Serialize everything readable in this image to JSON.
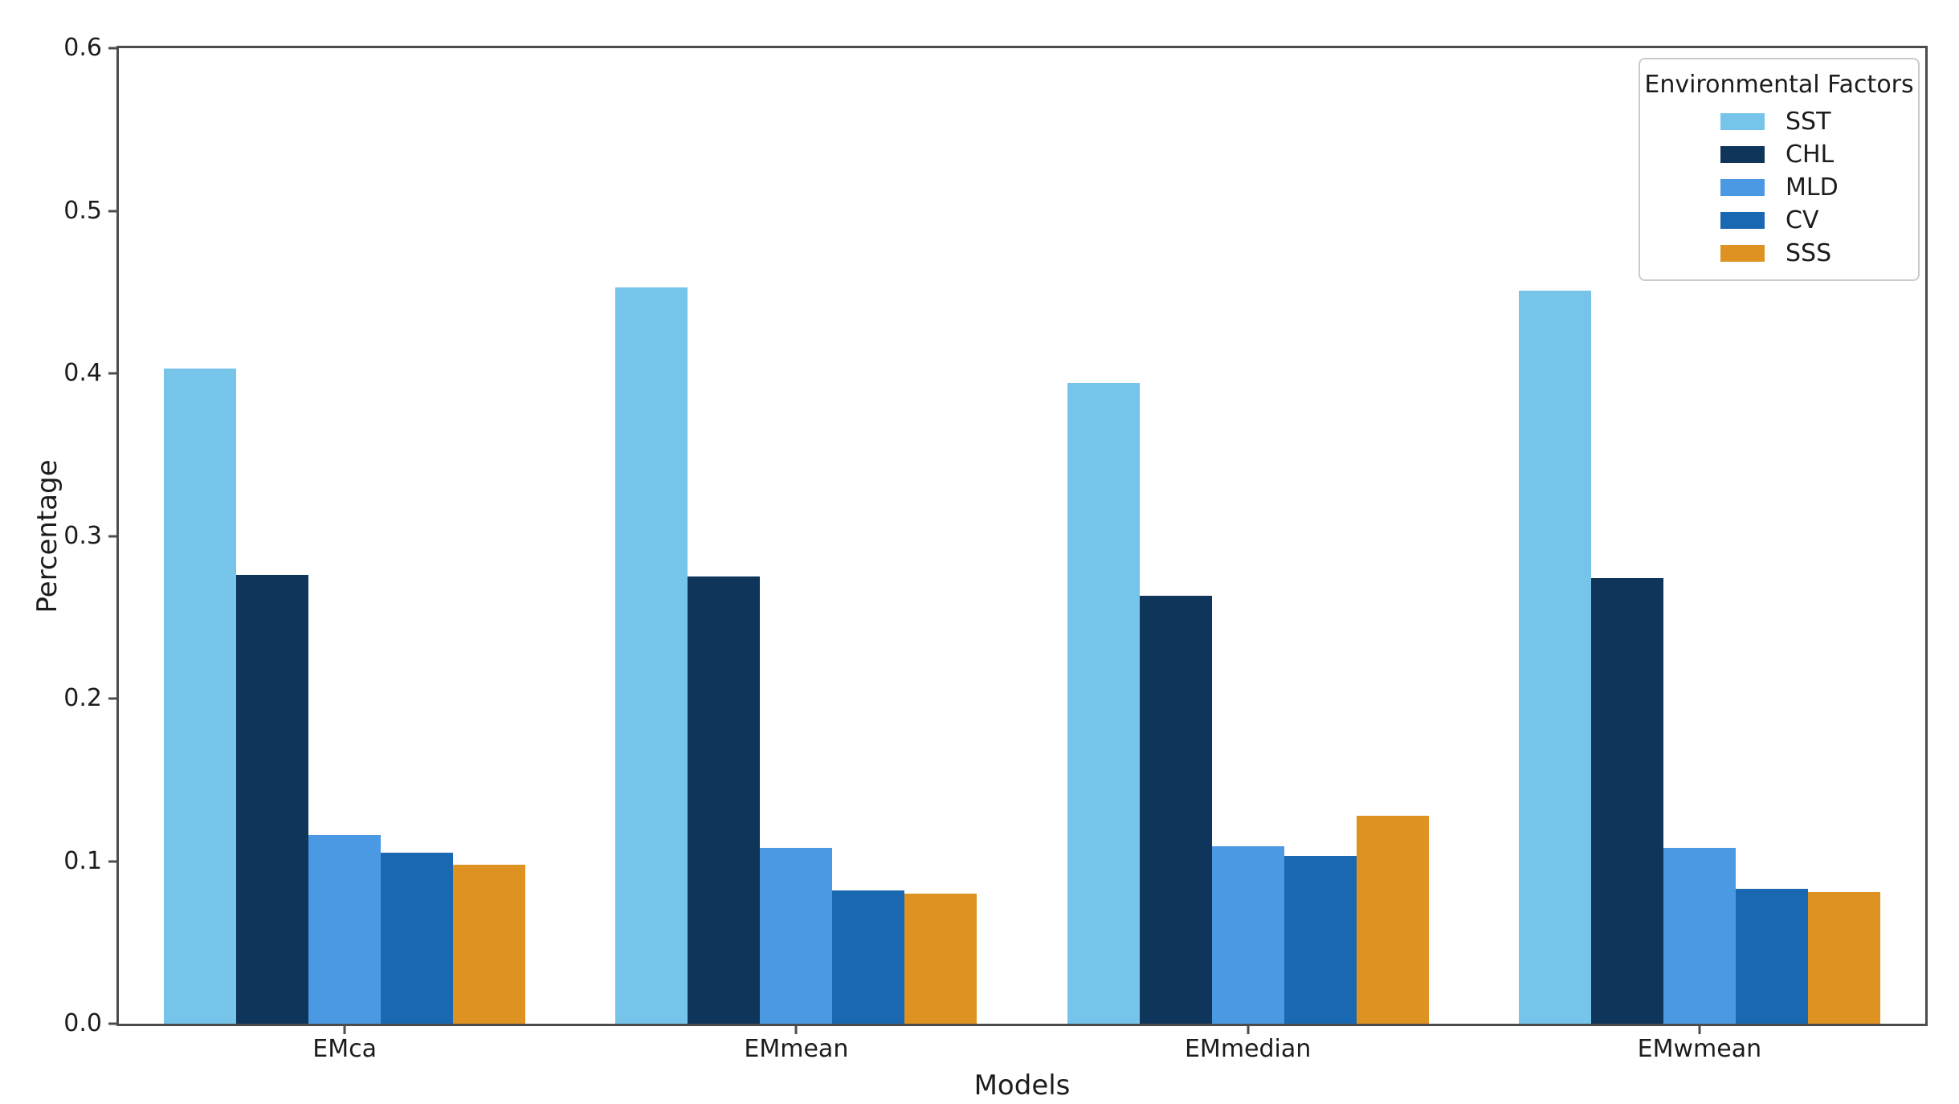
{
  "chart_data": {
    "type": "bar",
    "title": "",
    "xlabel": "Models",
    "ylabel": "Percentage",
    "categories": [
      "EMca",
      "EMmean",
      "EMmedian",
      "EMwmean"
    ],
    "series": [
      {
        "name": "SST",
        "color": "#77C4EB",
        "values": [
          0.403,
          0.453,
          0.394,
          0.451
        ]
      },
      {
        "name": "CHL",
        "color": "#10355A",
        "values": [
          0.276,
          0.275,
          0.263,
          0.274
        ]
      },
      {
        "name": "MLD",
        "color": "#4C99E3",
        "values": [
          0.116,
          0.108,
          0.109,
          0.108
        ]
      },
      {
        "name": "CV",
        "color": "#1B68B2",
        "values": [
          0.105,
          0.082,
          0.103,
          0.083
        ]
      },
      {
        "name": "SSS",
        "color": "#DE9221",
        "values": [
          0.098,
          0.08,
          0.128,
          0.081
        ]
      }
    ],
    "ylim": [
      0.0,
      0.6
    ],
    "yticks": [
      "0.0",
      "0.1",
      "0.2",
      "0.3",
      "0.4",
      "0.5",
      "0.6"
    ],
    "grid": false,
    "legend": {
      "title": "Environmental Factors",
      "position": "upper right"
    }
  }
}
